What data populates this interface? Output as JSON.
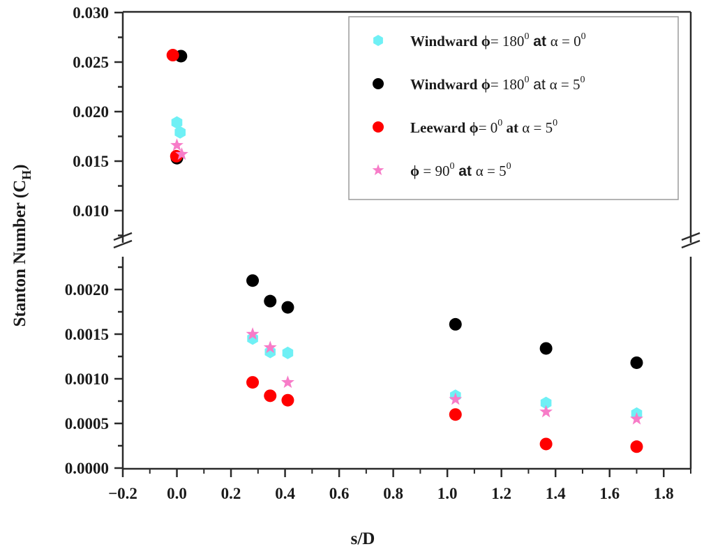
{
  "chart_data": {
    "type": "scatter",
    "title": "",
    "xlabel": "s/D",
    "ylabel": "Stanton Number (C_H)",
    "ylabel_main": "Stanton Number (C",
    "ylabel_sub": "H",
    "ylabel_close": ")",
    "xlim": [
      -0.2,
      1.9
    ],
    "y_broken_axis": true,
    "ylim_lower": [
      0.0,
      0.0024
    ],
    "ylim_upper": [
      0.0085,
      0.03
    ],
    "x_ticks": [
      "−0.2",
      "0.0",
      "0.2",
      "0.4",
      "0.6",
      "0.8",
      "1.0",
      "1.2",
      "1.4",
      "1.6",
      "1.8"
    ],
    "x_tick_values": [
      -0.2,
      0.0,
      0.2,
      0.4,
      0.6,
      0.8,
      1.0,
      1.2,
      1.4,
      1.6,
      1.8
    ],
    "y_ticks_lower": [
      "0.0000",
      "0.0005",
      "0.0010",
      "0.0015",
      "0.0020"
    ],
    "y_tick_values_lower": [
      0.0,
      0.0005,
      0.001,
      0.0015,
      0.002
    ],
    "y_ticks_upper": [
      "0.010",
      "0.015",
      "0.020",
      "0.025",
      "0.030"
    ],
    "y_tick_values_upper": [
      0.01,
      0.015,
      0.02,
      0.025,
      0.03
    ],
    "grid": false,
    "legend_position": "upper right",
    "series": [
      {
        "name": "Windward ϕ= 180⁰ at α = 0⁰",
        "marker": "hexagon",
        "color": "#6ff0f5",
        "points": [
          [
            0.0,
            0.0189
          ],
          [
            0.012,
            0.0179
          ],
          [
            0.28,
            0.00145
          ],
          [
            0.345,
            0.0013
          ],
          [
            0.41,
            0.00129
          ],
          [
            1.03,
            0.00081
          ],
          [
            1.365,
            0.00073
          ],
          [
            1.7,
            0.00061
          ]
        ]
      },
      {
        "name": "Windward ϕ= 180⁰ at α = 5⁰",
        "marker": "circle",
        "color": "#000000",
        "points": [
          [
            0.015,
            0.0256
          ],
          [
            0.0,
            0.0153
          ],
          [
            0.28,
            0.0021
          ],
          [
            0.345,
            0.00187
          ],
          [
            0.41,
            0.0018
          ],
          [
            1.03,
            0.00161
          ],
          [
            1.365,
            0.00134
          ],
          [
            1.7,
            0.00118
          ]
        ]
      },
      {
        "name": "Leeward ϕ= 0⁰ at α = 5⁰",
        "marker": "circle",
        "color": "#ff0000",
        "points": [
          [
            -0.015,
            0.0257
          ],
          [
            -0.002,
            0.0155
          ],
          [
            0.28,
            0.00096
          ],
          [
            0.345,
            0.00081
          ],
          [
            0.41,
            0.00076
          ],
          [
            1.03,
            0.0006
          ],
          [
            1.365,
            0.00027
          ],
          [
            1.7,
            0.00024
          ]
        ]
      },
      {
        "name": "ϕ = 90⁰ at α = 5⁰",
        "marker": "star",
        "color": "#f77cc8",
        "points": [
          [
            0.0,
            0.0166
          ],
          [
            0.018,
            0.0157
          ],
          [
            0.28,
            0.0015
          ],
          [
            0.345,
            0.00135
          ],
          [
            0.41,
            0.00096
          ],
          [
            1.03,
            0.00077
          ],
          [
            1.365,
            0.00063
          ],
          [
            1.7,
            0.00055
          ]
        ]
      }
    ]
  },
  "legend": {
    "items": [
      {
        "prefix": "Windward ",
        "phi": "ϕ",
        "eq1": "= 180",
        "sup1": "0",
        "at": " at ",
        "alpha": "α = 0",
        "sup2": "0"
      },
      {
        "prefix": "Windward ",
        "phi": "ϕ",
        "eq1": "= 180",
        "sup1": "0",
        "at": " at ",
        "alpha": "α = 5",
        "sup2": "0"
      },
      {
        "prefix": "Leeward ",
        "phi": "ϕ",
        "eq1": "= 0",
        "sup1": "0",
        "at": " at ",
        "alpha": "α = 5",
        "sup2": "0"
      },
      {
        "prefix": "",
        "phi": "ϕ",
        "eq1": " = 90",
        "sup1": "0",
        "at": " at ",
        "alpha": "α = 5",
        "sup2": "0"
      }
    ]
  }
}
